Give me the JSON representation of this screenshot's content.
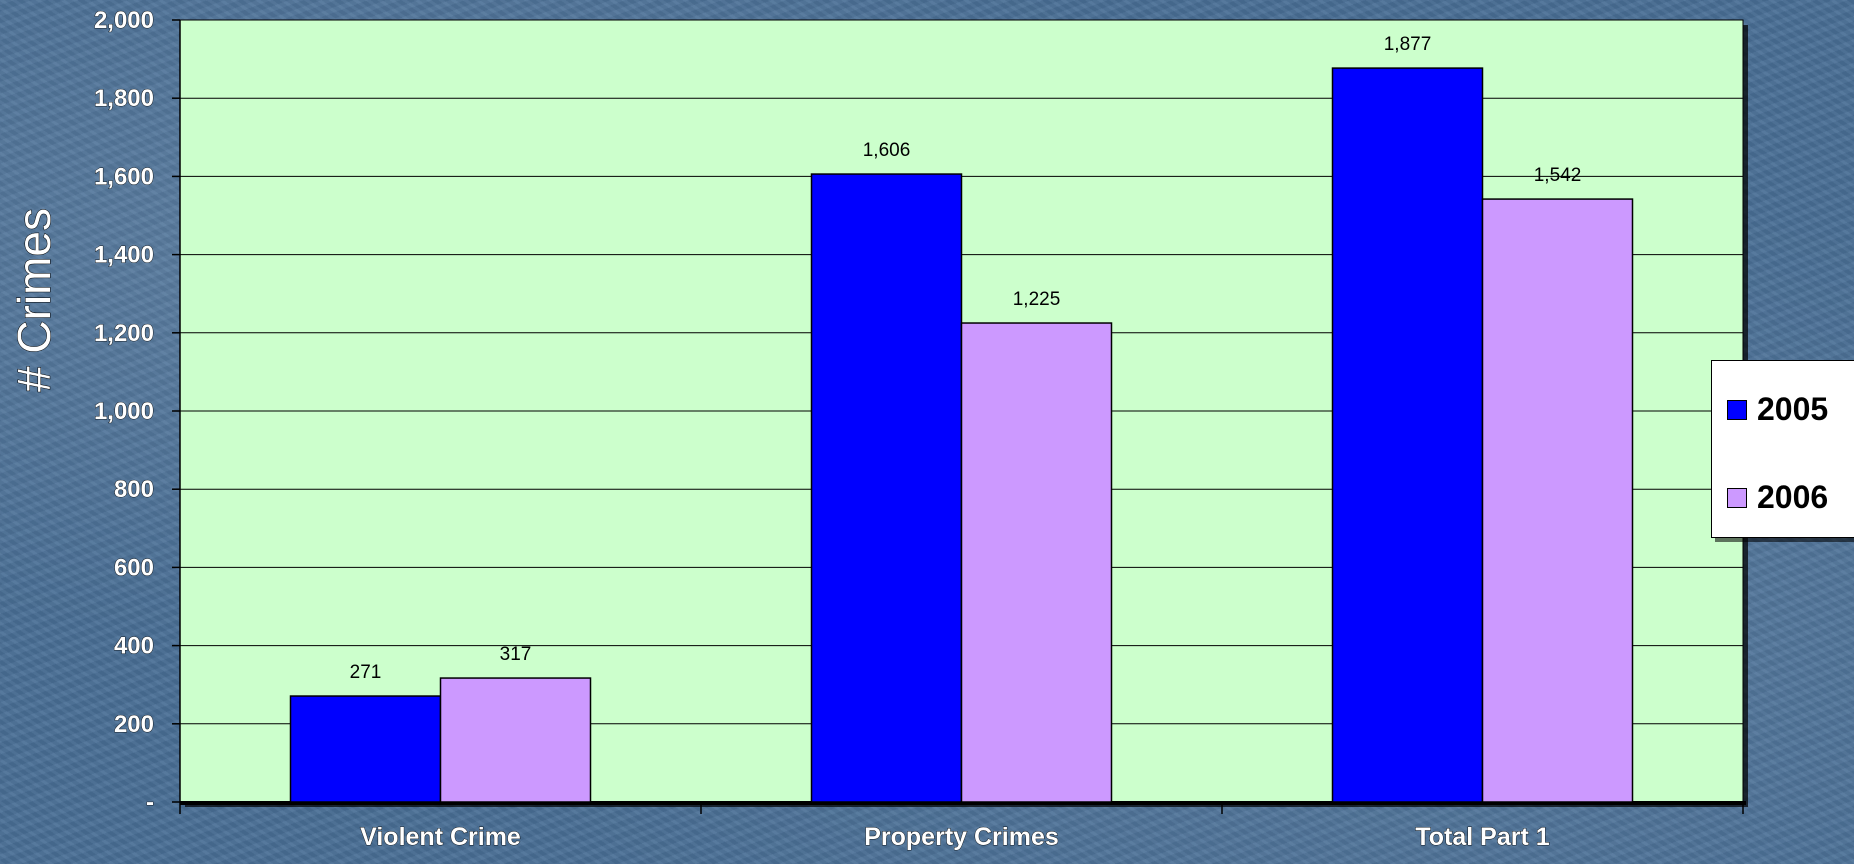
{
  "chart_data": {
    "type": "bar",
    "categories": [
      "Violent Crime",
      "Property Crimes",
      "Total Part 1"
    ],
    "series": [
      {
        "name": "2005",
        "values": [
          271,
          1606,
          1877
        ],
        "color": "#0000ff"
      },
      {
        "name": "2006",
        "values": [
          317,
          1225,
          1542
        ],
        "color": "#cc99ff"
      }
    ],
    "ylabel": "# Crimes",
    "ylim": [
      0,
      2000
    ],
    "yticks": [
      0,
      200,
      400,
      600,
      800,
      1000,
      1200,
      1400,
      1600,
      1800,
      2000
    ],
    "ytick_labels": [
      "-",
      "200",
      "400",
      "600",
      "800",
      "1,000",
      "1,200",
      "1,400",
      "1,600",
      "1,800",
      "2,000"
    ],
    "data_labels": [
      [
        "271",
        "1,606",
        "1,877"
      ],
      [
        "317",
        "1,225",
        "1,542"
      ]
    ],
    "grid": true,
    "legend_position": "right",
    "plot_background": "#ccffcc"
  }
}
